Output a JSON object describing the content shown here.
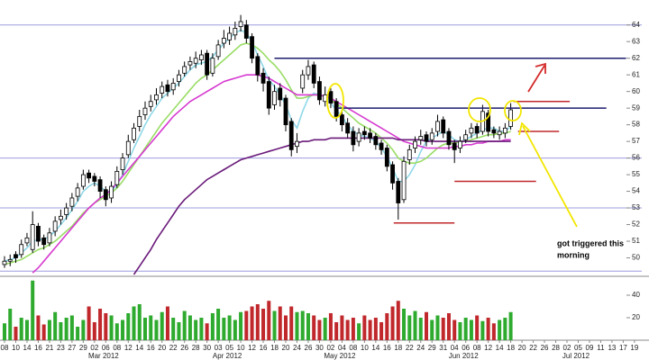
{
  "chart_data": {
    "type": "candlestick",
    "categories": [
      "08",
      null,
      "10",
      null,
      "14",
      null,
      "16",
      null,
      "21",
      null,
      "23",
      null,
      "27",
      null,
      "29",
      null,
      "02",
      null,
      "06",
      null,
      "08",
      null,
      "12",
      null,
      "14",
      null,
      "16",
      null,
      "20",
      null,
      "22",
      null,
      "26",
      null,
      "28",
      null,
      "30",
      null,
      "03",
      null,
      "05",
      null,
      "10",
      null,
      "12",
      null,
      "16",
      null,
      "18",
      null,
      "20",
      null,
      "24",
      null,
      "26",
      null,
      "30",
      null,
      "02",
      null,
      "04",
      null,
      "08",
      null,
      "10",
      null,
      "14",
      null,
      "16",
      null,
      "18",
      null,
      "22",
      null,
      "24",
      null,
      "29",
      null,
      "31",
      null,
      "04",
      null,
      "06",
      null,
      "08",
      null,
      "12",
      null,
      "14",
      null,
      "18",
      null,
      "20",
      null,
      "22",
      null,
      "26",
      null,
      "28",
      null,
      "02",
      null,
      "05",
      null,
      "09",
      null,
      "11",
      null,
      "13",
      null,
      "17",
      null,
      "19"
    ],
    "month_labels": [
      "Mar 2012",
      "Apr 2012",
      "May 2012",
      "Jun 2012",
      "Jul 2012"
    ],
    "open": [
      49.6,
      49.8,
      50.2,
      50.2,
      50.9,
      50.5,
      51.9,
      51.2,
      50.9,
      51.6,
      52.3,
      52.6,
      53.1,
      53.7,
      54.3,
      55.1,
      54.9,
      54.7,
      54.1,
      53.6,
      54.4,
      55.3,
      56.2,
      57.1,
      57.9,
      58.6,
      59.1,
      59.5,
      59.9,
      60.4,
      60.1,
      60.6,
      61.1,
      61.6,
      61.7,
      61.9,
      62.3,
      61.1,
      62.1,
      62.9,
      63.1,
      63.4,
      63.9,
      64.0,
      63.3,
      62.1,
      61.1,
      60.6,
      59.2,
      60.2,
      59.6,
      58.2,
      56.7,
      60.2,
      61.0,
      61.6,
      60.6,
      59.4,
      60.0,
      59.4,
      58.6,
      58.1,
      57.6,
      57.0,
      57.6,
      57.5,
      57.3,
      56.9,
      56.6,
      55.6,
      54.6,
      53.5,
      55.9,
      56.6,
      57.1,
      57.4,
      57.1,
      57.6,
      58.3,
      57.6,
      56.9,
      56.6,
      57.1,
      57.5,
      57.9,
      57.6,
      58.7,
      57.7,
      57.4,
      57.5,
      57.9,
      null,
      null,
      null,
      null,
      null,
      null,
      null,
      null,
      null,
      null,
      null,
      null,
      null,
      null,
      null,
      null,
      null,
      null,
      null,
      null,
      null,
      null
    ],
    "high": [
      50.1,
      50.2,
      50.4,
      51.1,
      51.5,
      52.8,
      52.1,
      51.4,
      51.8,
      52.5,
      52.9,
      53.3,
      53.9,
      54.5,
      55.3,
      55.3,
      55.1,
      54.9,
      54.3,
      54.6,
      55.5,
      56.3,
      57.4,
      58.1,
      58.9,
      59.4,
      59.8,
      60.2,
      60.6,
      60.7,
      60.8,
      61.3,
      61.8,
      62.1,
      62.4,
      62.5,
      62.5,
      62.3,
      63.1,
      63.7,
      63.9,
      64.2,
      64.6,
      64.3,
      63.5,
      62.3,
      61.4,
      60.9,
      60.4,
      60.5,
      59.8,
      58.4,
      57.5,
      61.3,
      61.9,
      61.8,
      60.9,
      60.3,
      60.2,
      59.6,
      58.8,
      58.4,
      57.9,
      57.8,
      57.9,
      57.8,
      57.5,
      57.1,
      56.8,
      55.8,
      54.8,
      56.1,
      56.8,
      57.3,
      57.7,
      57.6,
      57.8,
      58.6,
      58.5,
      57.8,
      57.1,
      57.3,
      57.7,
      58.1,
      58.1,
      59.2,
      58.9,
      57.9,
      57.9,
      58.1,
      59.3,
      null,
      null,
      null,
      null,
      null,
      null,
      null,
      null,
      null,
      null,
      null,
      null,
      null,
      null,
      null,
      null,
      null,
      null,
      null,
      null,
      null,
      null
    ],
    "low": [
      49.4,
      49.5,
      49.7,
      50.0,
      50.7,
      50.3,
      50.7,
      50.5,
      50.7,
      51.3,
      52.0,
      52.3,
      52.8,
      53.4,
      54.1,
      54.5,
      54.3,
      53.6,
      53.1,
      53.3,
      54.2,
      55.0,
      56.0,
      56.9,
      57.6,
      58.3,
      58.8,
      59.2,
      59.6,
      59.7,
      59.8,
      60.3,
      60.9,
      61.3,
      61.4,
      61.6,
      60.7,
      60.9,
      61.9,
      62.6,
      62.8,
      63.1,
      63.6,
      62.9,
      61.7,
      60.6,
      60.0,
      58.6,
      58.9,
      59.1,
      57.6,
      56.1,
      56.3,
      59.9,
      60.7,
      60.2,
      59.2,
      59.1,
      59.0,
      58.2,
      57.6,
      57.2,
      56.4,
      56.7,
      57.1,
      56.9,
      56.5,
      56.2,
      55.2,
      54.1,
      52.3,
      53.3,
      55.6,
      56.3,
      56.8,
      56.7,
      56.8,
      57.3,
      57.2,
      56.5,
      55.7,
      56.3,
      56.9,
      57.2,
      57.2,
      57.4,
      57.3,
      57.2,
      57.1,
      57.2,
      57.7,
      null,
      null,
      null,
      null,
      null,
      null,
      null,
      null,
      null,
      null,
      null,
      null,
      null,
      null,
      null,
      null,
      null,
      null,
      null,
      null,
      null,
      null
    ],
    "close": [
      49.8,
      49.9,
      50.0,
      50.8,
      51.2,
      52.0,
      51.0,
      50.8,
      51.5,
      52.2,
      52.5,
      53.0,
      53.6,
      54.2,
      55.0,
      54.8,
      54.6,
      54.0,
      53.5,
      54.3,
      55.2,
      56.0,
      57.0,
      57.8,
      58.5,
      59.0,
      59.4,
      59.8,
      60.3,
      60.0,
      60.5,
      61.0,
      61.5,
      61.8,
      62.0,
      62.2,
      61.0,
      62.0,
      62.8,
      63.2,
      63.5,
      63.8,
      64.2,
      63.2,
      62.0,
      61.0,
      60.5,
      59.0,
      60.0,
      59.5,
      58.0,
      56.5,
      57.0,
      61.0,
      61.5,
      60.5,
      59.5,
      59.8,
      59.3,
      58.5,
      58.0,
      57.5,
      56.8,
      57.5,
      57.4,
      57.2,
      56.8,
      56.5,
      55.5,
      54.5,
      53.3,
      55.8,
      56.5,
      57.0,
      57.3,
      57.0,
      57.5,
      58.2,
      57.5,
      56.8,
      56.5,
      57.0,
      57.4,
      57.8,
      57.5,
      58.8,
      57.6,
      57.5,
      57.6,
      57.8,
      58.9,
      null,
      null,
      null,
      null,
      null,
      null,
      null,
      null,
      null,
      null,
      null,
      null,
      null,
      null,
      null,
      null,
      null,
      null,
      null,
      null,
      null,
      null
    ],
    "up_color": "#ffffff",
    "down_color": "#000000",
    "ylim": [
      49,
      65.5
    ],
    "yticks": [
      50,
      51,
      52,
      53,
      54,
      55,
      56,
      57,
      58,
      59,
      60,
      61,
      62,
      63,
      64
    ],
    "moving_averages": [
      {
        "color": "#8fd8e8",
        "values": [
          49.8,
          49.9,
          50.0,
          50.3,
          50.6,
          51.0,
          51.1,
          51.1,
          51.3,
          51.6,
          52.0,
          52.4,
          52.9,
          53.4,
          54.0,
          54.3,
          54.5,
          54.3,
          54.0,
          54.0,
          54.4,
          55.0,
          55.8,
          56.6,
          57.3,
          58.0,
          58.6,
          59.1,
          59.6,
          59.9,
          60.2,
          60.5,
          60.9,
          61.3,
          61.6,
          61.7,
          61.8,
          62.1,
          62.5,
          62.9,
          63.2,
          63.5,
          63.7,
          63.5,
          63.0,
          62.2,
          61.5,
          60.7,
          60.3,
          59.8,
          59.2,
          58.3,
          57.8,
          58.8,
          59.6,
          59.9,
          59.8,
          59.7,
          59.3,
          58.9,
          58.5,
          58.0,
          57.6,
          57.4,
          57.3,
          57.2,
          57.0,
          56.6,
          56.1,
          55.4,
          54.6,
          54.6,
          55.0,
          55.6,
          56.4,
          57.0,
          57.2,
          57.4,
          57.6,
          57.4,
          57.1,
          57.0,
          57.1,
          57.3,
          57.5,
          57.7,
          57.8,
          57.8,
          57.6,
          57.6,
          57.9,
          null,
          null,
          null,
          null,
          null,
          null,
          null,
          null,
          null,
          null,
          null,
          null,
          null,
          null,
          null,
          null,
          null,
          null,
          null,
          null,
          null,
          null
        ]
      },
      {
        "color": "#99dd66",
        "values": [
          49.6,
          49.7,
          49.8,
          49.9,
          50.1,
          50.3,
          50.5,
          50.6,
          50.8,
          51.0,
          51.3,
          51.6,
          51.9,
          52.3,
          52.7,
          53.0,
          53.3,
          53.5,
          53.7,
          53.9,
          54.2,
          54.6,
          55.1,
          55.6,
          56.1,
          56.6,
          57.1,
          57.6,
          58.1,
          58.5,
          58.9,
          59.3,
          59.7,
          60.1,
          60.5,
          60.8,
          61.0,
          61.3,
          61.6,
          61.9,
          62.2,
          62.5,
          62.8,
          62.9,
          62.8,
          62.6,
          62.3,
          61.9,
          61.6,
          61.2,
          60.7,
          60.1,
          59.6,
          59.6,
          59.7,
          59.8,
          59.8,
          59.7,
          59.5,
          59.3,
          59.0,
          58.7,
          58.4,
          58.1,
          57.9,
          57.7,
          57.5,
          57.2,
          56.9,
          56.5,
          56.0,
          55.8,
          55.7,
          55.7,
          55.8,
          56.0,
          56.3,
          56.6,
          56.8,
          56.9,
          56.9,
          57.0,
          57.0,
          57.1,
          57.2,
          57.3,
          57.4,
          57.4,
          57.5,
          57.5,
          57.6,
          null,
          null,
          null,
          null,
          null,
          null,
          null,
          null,
          null,
          null,
          null,
          null,
          null,
          null,
          null,
          null,
          null,
          null,
          null,
          null,
          null,
          null
        ]
      },
      {
        "color": "#d63ad0",
        "values": [
          null,
          null,
          null,
          null,
          null,
          49.1,
          49.4,
          49.8,
          50.2,
          50.6,
          51.0,
          51.4,
          51.8,
          52.2,
          52.6,
          53.0,
          53.3,
          53.6,
          53.8,
          54.1,
          54.5,
          54.9,
          55.3,
          55.7,
          56.1,
          56.5,
          56.9,
          57.3,
          57.7,
          58.1,
          58.5,
          58.8,
          59.1,
          59.4,
          59.6,
          59.8,
          60.0,
          60.2,
          60.4,
          60.6,
          60.7,
          60.8,
          60.9,
          61.0,
          61.0,
          61.0,
          60.9,
          60.8,
          60.6,
          60.4,
          60.2,
          60.0,
          59.8,
          59.8,
          59.8,
          59.8,
          59.8,
          59.7,
          59.6,
          59.4,
          59.2,
          59.0,
          58.8,
          58.6,
          58.4,
          58.2,
          58.0,
          57.8,
          57.6,
          57.4,
          57.2,
          57.0,
          56.9,
          56.8,
          56.7,
          56.6,
          56.6,
          56.6,
          56.6,
          56.6,
          56.7,
          56.7,
          56.8,
          56.8,
          56.9,
          56.9,
          57.0,
          57.0,
          57.0,
          57.1,
          57.1,
          null,
          null,
          null,
          null,
          null,
          null,
          null,
          null,
          null,
          null,
          null,
          null,
          null,
          null,
          null,
          null,
          null,
          null,
          null,
          null,
          null,
          null
        ]
      },
      {
        "color": "#6a1a7a",
        "values": [
          null,
          null,
          null,
          null,
          null,
          null,
          null,
          null,
          null,
          null,
          null,
          null,
          null,
          null,
          null,
          null,
          null,
          null,
          null,
          null,
          null,
          null,
          null,
          49.0,
          49.5,
          50.0,
          50.5,
          51.1,
          51.6,
          52.1,
          52.6,
          53.1,
          53.5,
          53.8,
          54.1,
          54.4,
          54.7,
          54.9,
          55.1,
          55.3,
          55.5,
          55.7,
          55.9,
          56.0,
          56.1,
          56.2,
          56.3,
          56.4,
          56.5,
          56.6,
          56.7,
          56.8,
          56.9,
          57.0,
          57.0,
          57.1,
          57.1,
          57.1,
          57.2,
          57.2,
          57.2,
          57.2,
          57.2,
          57.2,
          57.2,
          57.2,
          57.2,
          57.2,
          57.2,
          57.2,
          57.1,
          57.1,
          57.1,
          57.1,
          57.1,
          57.0,
          57.0,
          57.0,
          57.0,
          57.0,
          57.0,
          57.0,
          57.0,
          57.0,
          57.0,
          57.0,
          57.0,
          57.0,
          57.0,
          57.0,
          57.0,
          null,
          null,
          null,
          null,
          null,
          null,
          null,
          null,
          null,
          null,
          null,
          null,
          null,
          null,
          null,
          null,
          null,
          null,
          null,
          null,
          null,
          null
        ]
      }
    ],
    "guide_lines": {
      "color": "#9c9ce0",
      "values": [
        64,
        56,
        53,
        49.2
      ]
    },
    "levels": [
      {
        "color": "#1c1c6e",
        "value": 62.0,
        "x": [
          48,
          110.5
        ]
      },
      {
        "color": "#1c1c6e",
        "value": 59.0,
        "x": [
          59.2,
          107
        ]
      },
      {
        "color": "#c0282c",
        "value": 59.4,
        "x": [
          90.5,
          100.5
        ]
      },
      {
        "color": "#c0282c",
        "value": 57.6,
        "x": [
          91.3,
          98.6
        ]
      },
      {
        "color": "#c0282c",
        "value": 54.6,
        "x": [
          80,
          94.5
        ]
      },
      {
        "color": "#c0282c",
        "value": 52.1,
        "x": [
          69.2,
          80
        ]
      }
    ],
    "volume": {
      "values": [
        15,
        28,
        12,
        20,
        18,
        53,
        22,
        14,
        18,
        25,
        16,
        20,
        22,
        12,
        18,
        30,
        16,
        28,
        24,
        22,
        15,
        18,
        24,
        30,
        32,
        20,
        22,
        18,
        25,
        30,
        20,
        16,
        26,
        22,
        18,
        20,
        15,
        24,
        28,
        20,
        22,
        18,
        25,
        26,
        30,
        32,
        28,
        35,
        26,
        30,
        22,
        30,
        25,
        26,
        24,
        22,
        18,
        20,
        24,
        16,
        22,
        18,
        20,
        15,
        22,
        18,
        20,
        16,
        24,
        30,
        35,
        28,
        22,
        26,
        20,
        25,
        18,
        22,
        20,
        24,
        18,
        16,
        20,
        18,
        22,
        17,
        20,
        15,
        18,
        20,
        25,
        null,
        null,
        null,
        null,
        null,
        null,
        null,
        null,
        null,
        null,
        null,
        null,
        null,
        null,
        null,
        null,
        null,
        null,
        null,
        null,
        null,
        null
      ],
      "ylim": [
        0,
        54.4
      ],
      "yticks": [
        20,
        40
      ],
      "up_color": "#2eaa2e",
      "down_color": "#c0282c"
    },
    "annotation": [
      "got triggered this",
      "morning"
    ]
  }
}
